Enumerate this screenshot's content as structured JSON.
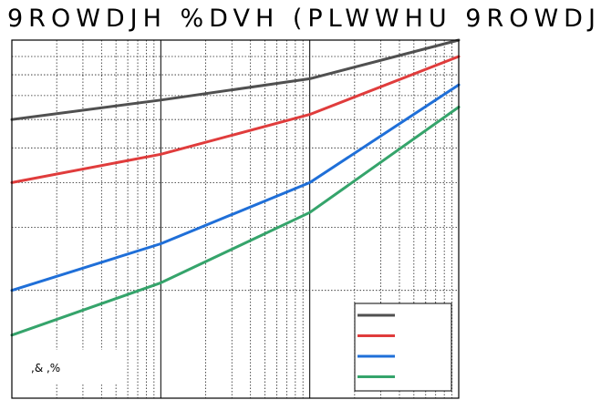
{
  "chart_data": {
    "type": "line",
    "title": "9ROWDJH %DVH (PLWWHU 9ROWDJ",
    "annotation": ",& ,%",
    "x_scale": "log",
    "y_scale": "log",
    "grid": true,
    "legend_placement": "bottom-right",
    "xlabel": "",
    "ylabel": "",
    "x": [
      1,
      10,
      100,
      1000
    ],
    "series": [
      {
        "color": "#505050",
        "values": [
          0.6,
          0.68,
          0.78,
          1.0
        ]
      },
      {
        "color": "#e03c3c",
        "values": [
          0.4,
          0.48,
          0.62,
          0.9
        ]
      },
      {
        "color": "#1f6fd8",
        "values": [
          0.2,
          0.27,
          0.4,
          0.75
        ]
      },
      {
        "color": "#35a46b",
        "values": [
          0.15,
          0.21,
          0.33,
          0.65
        ]
      }
    ],
    "legend": [
      {
        "label": "",
        "color": "#505050"
      },
      {
        "label": "",
        "color": "#e03c3c"
      },
      {
        "label": "",
        "color": "#1f6fd8"
      },
      {
        "label": "",
        "color": "#35a46b"
      }
    ]
  }
}
